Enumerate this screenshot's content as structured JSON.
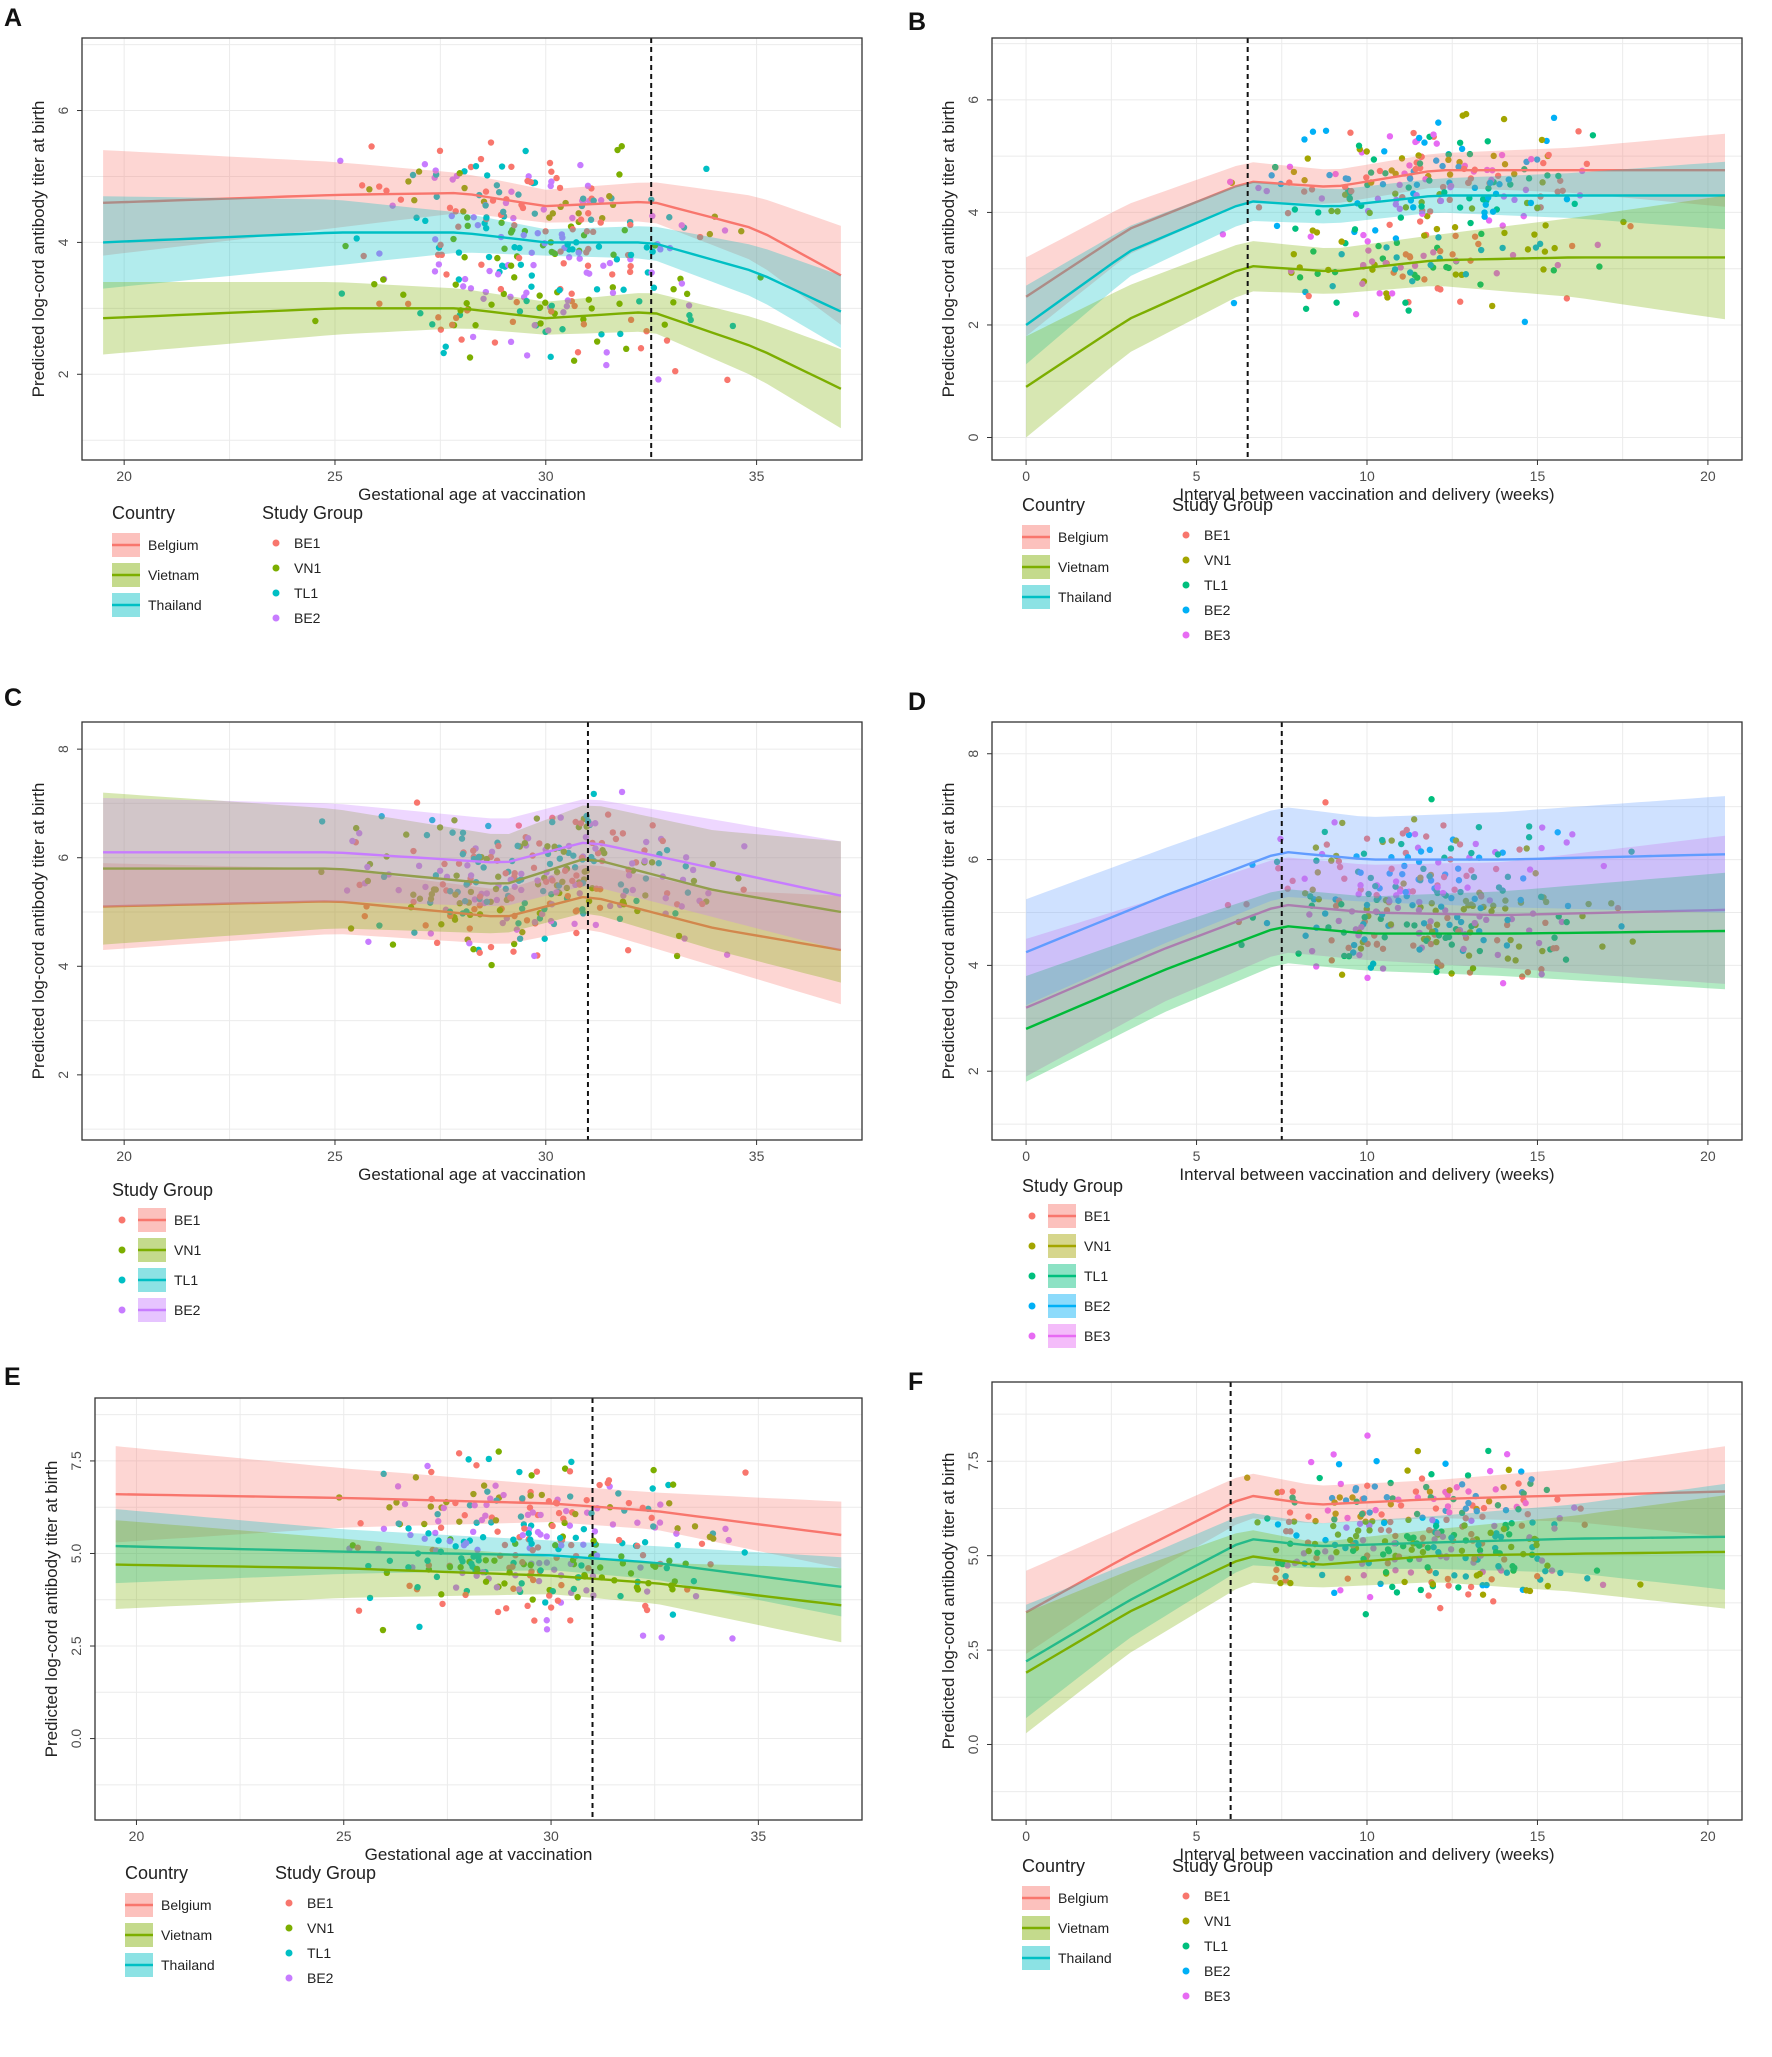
{
  "chart_data": [
    {
      "panel": "A",
      "type": "scatter",
      "xlabel": "Gestational age at vaccination",
      "ylabel": "Predicted log-cord antibody titer at birth",
      "xlim": [
        19,
        37.5
      ],
      "ylim": [
        0.7,
        7.1
      ],
      "xticks": [
        20,
        25,
        30,
        35
      ],
      "yticks": [
        2,
        4,
        6
      ],
      "vline": 32.5,
      "show_ribbon_legend": true,
      "legend": {
        "country_title": "Country",
        "countries": [
          "Belgium",
          "Vietnam",
          "Thailand"
        ],
        "group_title": "Study Group",
        "groups": [
          "BE1",
          "VN1",
          "TL1",
          "BE2"
        ]
      },
      "series": [
        {
          "name": "Belgium",
          "color": "#f8766d",
          "x": [
            19.5,
            25,
            28,
            30,
            32.5,
            35,
            37
          ],
          "y": [
            4.6,
            4.72,
            4.75,
            4.55,
            4.62,
            4.2,
            3.5
          ],
          "band": [
            0.8,
            0.5,
            0.3,
            0.25,
            0.3,
            0.5,
            0.75
          ]
        },
        {
          "name": "Thailand",
          "color": "#00bfc4",
          "x": [
            19.5,
            25,
            28,
            30,
            32.5,
            35,
            37
          ],
          "y": [
            4.0,
            4.15,
            4.15,
            4.0,
            4.0,
            3.55,
            2.95
          ],
          "band": [
            0.7,
            0.5,
            0.3,
            0.2,
            0.25,
            0.4,
            0.55
          ]
        },
        {
          "name": "Vietnam",
          "color": "#7cae00",
          "x": [
            19.5,
            25,
            28,
            30,
            32.5,
            35,
            37
          ],
          "y": [
            2.85,
            3.0,
            3.0,
            2.85,
            2.95,
            2.4,
            1.78
          ],
          "band": [
            0.55,
            0.4,
            0.3,
            0.25,
            0.3,
            0.45,
            0.6
          ]
        }
      ]
    },
    {
      "panel": "B",
      "type": "scatter",
      "xlabel": "Interval between vaccination and delivery (weeks)",
      "ylabel": "Predicted log-cord antibody titer at birth",
      "xlim": [
        -1,
        21
      ],
      "ylim": [
        -0.4,
        7.1
      ],
      "xticks": [
        0,
        5,
        10,
        15,
        20
      ],
      "yticks": [
        0,
        2,
        4,
        6
      ],
      "vline": 6.5,
      "show_ribbon_legend": true,
      "legend": {
        "country_title": "Country",
        "countries": [
          "Belgium",
          "Vietnam",
          "Thailand"
        ],
        "group_title": "Study Group",
        "groups": [
          "BE1",
          "VN1",
          "TL1",
          "BE2",
          "BE3"
        ]
      },
      "series": [
        {
          "name": "Belgium",
          "color": "#f8766d",
          "x": [
            0,
            3,
            6.5,
            9,
            12,
            16,
            20.5
          ],
          "y": [
            2.5,
            3.7,
            4.55,
            4.45,
            4.75,
            4.75,
            4.75
          ],
          "band": [
            0.7,
            0.45,
            0.35,
            0.3,
            0.3,
            0.4,
            0.65
          ]
        },
        {
          "name": "Thailand",
          "color": "#00bfc4",
          "x": [
            0,
            3,
            6.5,
            9,
            12,
            16,
            20.5
          ],
          "y": [
            2.0,
            3.3,
            4.2,
            4.1,
            4.3,
            4.3,
            4.3
          ],
          "band": [
            0.7,
            0.45,
            0.35,
            0.3,
            0.3,
            0.4,
            0.6
          ]
        },
        {
          "name": "Vietnam",
          "color": "#7cae00",
          "x": [
            0,
            3,
            6.5,
            9,
            12,
            16,
            20.5
          ],
          "y": [
            0.9,
            2.1,
            3.05,
            2.95,
            3.15,
            3.2,
            3.2
          ],
          "band": [
            0.9,
            0.6,
            0.45,
            0.4,
            0.45,
            0.7,
            1.1
          ]
        }
      ]
    },
    {
      "panel": "C",
      "type": "scatter",
      "xlabel": "Gestational age at vaccination",
      "ylabel": "Predicted log-cord antibody titer at birth",
      "xlim": [
        19,
        37.5
      ],
      "ylim": [
        0.8,
        8.5
      ],
      "xticks": [
        20,
        25,
        30,
        35
      ],
      "yticks": [
        2,
        4,
        6,
        8
      ],
      "vline": 31,
      "show_ribbon_legend": false,
      "legend": {
        "group_title": "Study Group",
        "groups": [
          "BE1",
          "VN1",
          "TL1",
          "BE2"
        ]
      },
      "series": [
        {
          "name": "BE1",
          "color": "#f8766d",
          "x": [
            19.5,
            25,
            29,
            31,
            34,
            37
          ],
          "y": [
            5.1,
            5.2,
            4.9,
            5.3,
            4.7,
            4.3
          ],
          "band": [
            0.8,
            0.6,
            0.5,
            0.6,
            0.7,
            1.0
          ]
        },
        {
          "name": "VN1",
          "color": "#7cae00",
          "x": [
            19.5,
            25,
            29,
            31,
            34,
            37
          ],
          "y": [
            5.8,
            5.8,
            5.5,
            6.0,
            5.4,
            5.0
          ],
          "band": [
            1.4,
            1.1,
            0.9,
            1.0,
            1.1,
            1.3
          ]
        },
        {
          "name": "BE2",
          "color": "#c77cff",
          "x": [
            19.5,
            25,
            29,
            31,
            34,
            37
          ],
          "y": [
            6.1,
            6.1,
            5.9,
            6.3,
            5.8,
            5.3
          ],
          "band": [
            1.0,
            0.9,
            0.8,
            0.8,
            0.9,
            1.0
          ]
        }
      ]
    },
    {
      "panel": "D",
      "type": "scatter",
      "xlabel": "Interval between vaccination and delivery (weeks)",
      "ylabel": "Predicted log-cord antibody titer at birth",
      "xlim": [
        -1,
        21
      ],
      "ylim": [
        0.7,
        8.6
      ],
      "xticks": [
        0,
        5,
        10,
        15,
        20
      ],
      "yticks": [
        2,
        4,
        6,
        8
      ],
      "vline": 7.5,
      "show_ribbon_legend": false,
      "legend": {
        "group_title": "Study Group",
        "groups": [
          "BE1",
          "VN1",
          "TL1",
          "BE2",
          "BE3"
        ]
      },
      "series": [
        {
          "name": "BE3",
          "color": "#f564e3",
          "x": [
            0,
            4,
            7.5,
            10,
            14,
            20.5
          ],
          "y": [
            3.2,
            4.3,
            5.15,
            5.0,
            4.95,
            5.05
          ],
          "band": [
            1.3,
            1.0,
            0.9,
            0.9,
            1.0,
            1.4
          ]
        },
        {
          "name": "TL1",
          "color": "#00ba38",
          "x": [
            0,
            4,
            7.5,
            10,
            14,
            20.5
          ],
          "y": [
            2.8,
            3.9,
            4.75,
            4.6,
            4.6,
            4.65
          ],
          "band": [
            1.0,
            0.8,
            0.7,
            0.7,
            0.8,
            1.1
          ]
        },
        {
          "name": "BE2",
          "color": "#619cff",
          "x": [
            0,
            4,
            7.5,
            10,
            14,
            20.5
          ],
          "y": [
            4.25,
            5.3,
            6.15,
            6.0,
            6.0,
            6.1
          ],
          "band": [
            1.0,
            0.9,
            0.85,
            0.8,
            0.9,
            1.1
          ]
        }
      ]
    },
    {
      "panel": "E",
      "type": "scatter",
      "xlabel": "Gestational age at vaccination",
      "ylabel": "Predicted log-cord antibody titer at birth",
      "xlim": [
        19,
        37.5
      ],
      "ylim": [
        -2.2,
        9.2
      ],
      "xticks": [
        20,
        25,
        30,
        35
      ],
      "yticks": [
        0.0,
        2.5,
        5.0,
        7.5
      ],
      "ytick_labels": [
        "0.0",
        "2.5",
        "5.0",
        "7.5"
      ],
      "vline": 31,
      "show_ribbon_legend": true,
      "legend": {
        "country_title": "Country",
        "countries": [
          "Belgium",
          "Vietnam",
          "Thailand"
        ],
        "group_title": "Study Group",
        "groups": [
          "BE1",
          "VN1",
          "TL1",
          "BE2"
        ]
      },
      "series": [
        {
          "name": "Belgium",
          "color": "#f8766d",
          "x": [
            19.5,
            25,
            30,
            32.5,
            37
          ],
          "y": [
            6.6,
            6.5,
            6.35,
            6.15,
            5.5
          ],
          "band": [
            1.3,
            0.8,
            0.5,
            0.5,
            0.9
          ]
        },
        {
          "name": "Thailand",
          "color": "#00bfc4",
          "x": [
            19.5,
            25,
            30,
            32.5,
            37
          ],
          "y": [
            5.2,
            5.05,
            4.95,
            4.75,
            4.1
          ],
          "band": [
            1.0,
            0.6,
            0.4,
            0.45,
            0.8
          ]
        },
        {
          "name": "Vietnam",
          "color": "#7cae00",
          "x": [
            19.5,
            25,
            30,
            32.5,
            37
          ],
          "y": [
            4.7,
            4.6,
            4.4,
            4.2,
            3.6
          ],
          "band": [
            1.2,
            0.8,
            0.5,
            0.55,
            1.0
          ]
        }
      ]
    },
    {
      "panel": "F",
      "type": "scatter",
      "xlabel": "Interval between vaccination and delivery (weeks)",
      "ylabel": "Predicted log-cord antibody titer at birth",
      "xlim": [
        -1,
        21
      ],
      "ylim": [
        -2.0,
        9.6
      ],
      "xticks": [
        0,
        5,
        10,
        15,
        20
      ],
      "yticks": [
        0.0,
        2.5,
        5.0,
        7.5
      ],
      "ytick_labels": [
        "0.0",
        "2.5",
        "5.0",
        "7.5"
      ],
      "vline": 6,
      "show_ribbon_legend": true,
      "legend": {
        "country_title": "Country",
        "countries": [
          "Belgium",
          "Vietnam",
          "Thailand"
        ],
        "group_title": "Study Group",
        "groups": [
          "BE1",
          "VN1",
          "TL1",
          "BE2",
          "BE3"
        ]
      },
      "series": [
        {
          "name": "Belgium",
          "color": "#f8766d",
          "x": [
            0,
            3,
            6.5,
            8.5,
            12,
            16,
            20.5
          ],
          "y": [
            3.5,
            5.0,
            6.6,
            6.35,
            6.5,
            6.6,
            6.7
          ],
          "band": [
            1.1,
            0.8,
            0.6,
            0.5,
            0.5,
            0.7,
            1.2
          ]
        },
        {
          "name": "Thailand",
          "color": "#00bfc4",
          "x": [
            0,
            3,
            6.5,
            8.5,
            12,
            16,
            20.5
          ],
          "y": [
            2.2,
            3.8,
            5.45,
            5.25,
            5.35,
            5.45,
            5.5
          ],
          "band": [
            1.5,
            1.0,
            0.7,
            0.6,
            0.7,
            0.9,
            1.4
          ]
        },
        {
          "name": "Vietnam",
          "color": "#7cae00",
          "x": [
            0,
            3,
            6.5,
            8.5,
            12,
            16,
            20.5
          ],
          "y": [
            1.9,
            3.5,
            5.0,
            4.75,
            5.0,
            5.05,
            5.1
          ],
          "band": [
            1.6,
            1.1,
            0.7,
            0.6,
            0.7,
            1.0,
            1.5
          ]
        }
      ]
    }
  ],
  "group_colors": {
    "BE1": "#f8766d",
    "VN1": "#a3a500",
    "TL1": "#00bf7d",
    "BE2": "#00b0f6",
    "BE3": "#e76bf3"
  },
  "group_colors_4": {
    "BE1": "#f8766d",
    "VN1": "#7cae00",
    "TL1": "#00bfc4",
    "BE2": "#c77cff"
  },
  "country_colors": {
    "Belgium": "#f8766d",
    "Vietnam": "#7cae00",
    "Thailand": "#00bfc4"
  }
}
